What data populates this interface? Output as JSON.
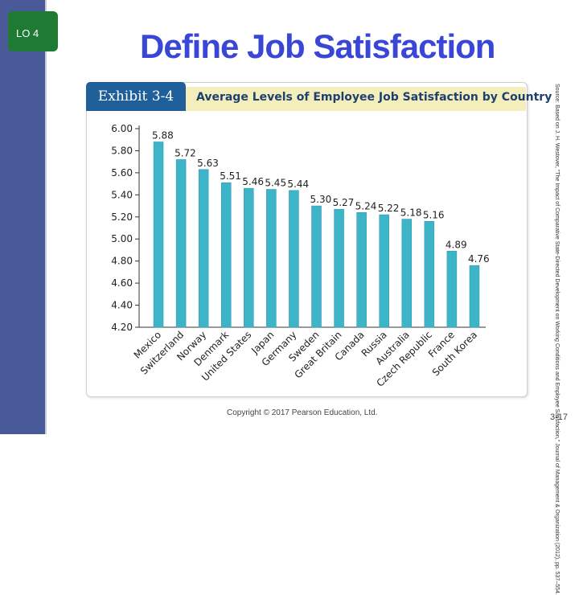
{
  "lo_badge": "LO 4",
  "title": "Define Job Satisfaction",
  "exhibit": {
    "tab": "Exhibit 3-4",
    "caption": "Average Levels of Employee Job Satisfaction by Country"
  },
  "source": "Source: Based on J. H. Westover, \"The Impact of Comparative State-Directed Development on Working Conditions and Employee Satisfaction,\" Journal of Management & Organization (2012), pp. 537–554.",
  "copyright": "Copyright © 2017 Pearson Education, Ltd.",
  "slide_number": "3-17",
  "colors": {
    "bar": "#3db4c8",
    "title": "#3a47d6",
    "tab": "#1f5f9a",
    "header": "#f4eebc",
    "sidebar": "#4a5a99",
    "badge": "#1f7a34"
  },
  "chart_data": {
    "type": "bar",
    "title": "Average Levels of Employee Job Satisfaction by Country",
    "xlabel": "",
    "ylabel": "",
    "ylim": [
      4.2,
      6.0
    ],
    "yticks": [
      "6.00",
      "5.80",
      "5.60",
      "5.40",
      "5.20",
      "5.00",
      "4.80",
      "4.60",
      "4.40",
      "4.20"
    ],
    "grid": false,
    "categories": [
      "Mexico",
      "Switzerland",
      "Norway",
      "Denmark",
      "United States",
      "Japan",
      "Germany",
      "Sweden",
      "Great Britain",
      "Canada",
      "Russia",
      "Australia",
      "Czech Republic",
      "France",
      "South Korea"
    ],
    "values": [
      5.88,
      5.72,
      5.63,
      5.51,
      5.46,
      5.45,
      5.44,
      5.3,
      5.27,
      5.24,
      5.22,
      5.18,
      5.16,
      4.89,
      4.76
    ],
    "labels": [
      "5.88",
      "5.72",
      "5.63",
      "5.51",
      "5.46",
      "5.45",
      "5.44",
      "5.30",
      "5.27",
      "5.24",
      "5.22",
      "5.18",
      "5.16",
      "4.89",
      "4.76"
    ]
  }
}
